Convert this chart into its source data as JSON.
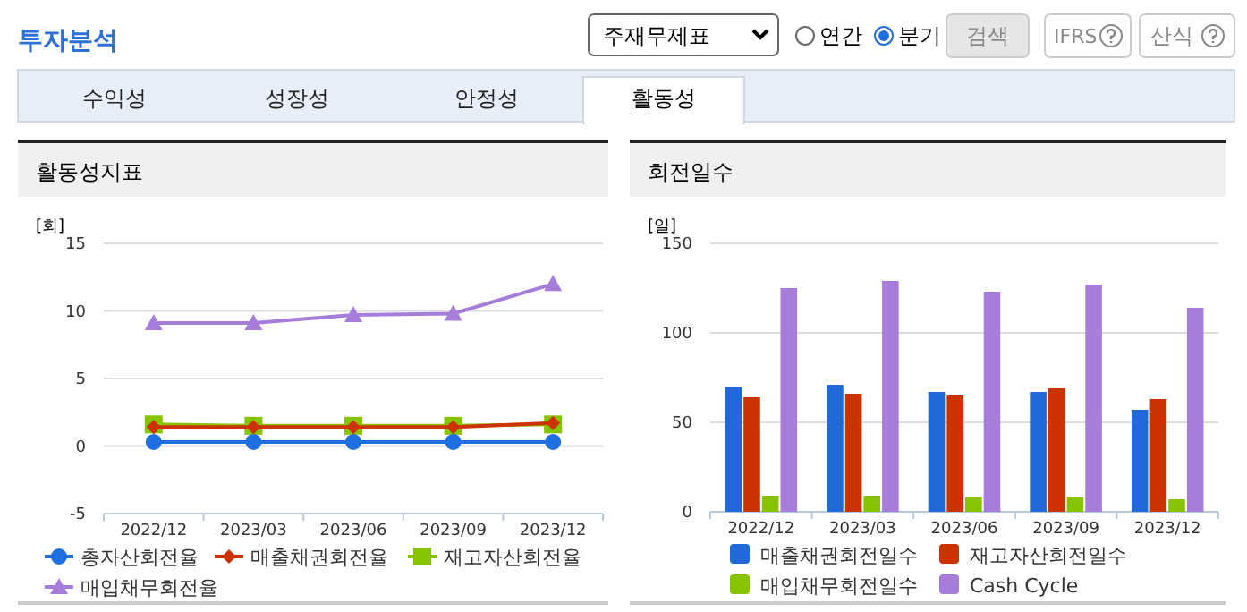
{
  "chart_data": [
    {
      "type": "other",
      "title": "투자분석",
      "annotations": [
        "주재무제표",
        "연간",
        "분기",
        "검색",
        "IFRS",
        "산식",
        "수익성",
        "성장성",
        "안정성",
        "활동성"
      ]
    },
    {
      "type": "line",
      "title": "활동성지표",
      "ylabel": "[회]",
      "categories": [
        "2022/12",
        "2023/03",
        "2023/06",
        "2023/09",
        "2023/12"
      ],
      "ylim": [
        -5,
        15
      ],
      "yticks": [
        -5,
        0,
        5,
        10,
        15
      ],
      "grid": "y",
      "legend": "bottom",
      "series": [
        {
          "name": "총자산회전율",
          "color": "#1f6fe0",
          "marker": "circle",
          "values": [
            0.3,
            0.3,
            0.3,
            0.3,
            0.3
          ]
        },
        {
          "name": "매출채권회전율",
          "color": "#cc3300",
          "marker": "diamond",
          "values": [
            1.4,
            1.4,
            1.4,
            1.4,
            1.7
          ]
        },
        {
          "name": "재고자산회전율",
          "color": "#88c300",
          "marker": "square",
          "values": [
            1.6,
            1.5,
            1.5,
            1.5,
            1.6
          ]
        },
        {
          "name": "매입채무회전율",
          "color": "#a67ddb",
          "marker": "triangle",
          "values": [
            9.1,
            9.1,
            9.7,
            9.8,
            12.0
          ]
        }
      ]
    },
    {
      "type": "bar",
      "title": "회전일수",
      "ylabel": "[일]",
      "categories": [
        "2022/12",
        "2023/03",
        "2023/06",
        "2023/09",
        "2023/12"
      ],
      "ylim": [
        0,
        150
      ],
      "yticks": [
        0,
        50,
        100,
        150
      ],
      "grid": "y",
      "legend": "bottom",
      "series": [
        {
          "name": "매출채권회전일수",
          "color": "#2269d8",
          "values": [
            70,
            71,
            67,
            67,
            57
          ]
        },
        {
          "name": "재고자산회전일수",
          "color": "#cc3300",
          "values": [
            64,
            66,
            65,
            69,
            63
          ]
        },
        {
          "name": "매입채무회전일수",
          "color": "#88c300",
          "values": [
            9,
            9,
            8,
            8,
            7
          ]
        },
        {
          "name": "Cash Cycle",
          "color": "#a67ddb",
          "values": [
            125,
            129,
            123,
            127,
            114
          ]
        }
      ]
    }
  ]
}
